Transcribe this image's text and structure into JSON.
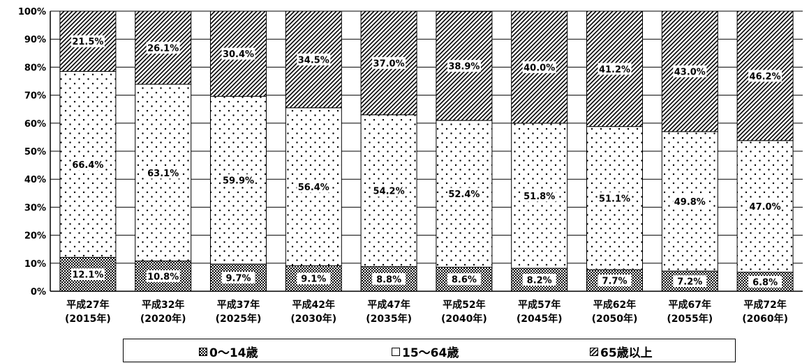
{
  "chart_data": {
    "type": "bar",
    "stacked": true,
    "categories": [
      "平成27年\n(2015年)",
      "平成32年\n(2020年)",
      "平成37年\n(2025年)",
      "平成42年\n(2030年)",
      "平成47年\n(2035年)",
      "平成52年\n(2040年)",
      "平成57年\n(2045年)",
      "平成62年\n(2050年)",
      "平成67年\n(2055年)",
      "平成72年\n(2060年)"
    ],
    "series": [
      {
        "name": "0～14歳",
        "values": [
          12.1,
          10.8,
          9.7,
          9.1,
          8.8,
          8.6,
          8.2,
          7.7,
          7.2,
          6.8
        ],
        "labels": [
          "12.1%",
          "10.8%",
          "9.7%",
          "9.1%",
          "8.8%",
          "8.6%",
          "8.2%",
          "7.7%",
          "7.2%",
          "6.8%"
        ],
        "pattern": "checker"
      },
      {
        "name": "15～64歳",
        "values": [
          66.4,
          63.1,
          59.9,
          56.4,
          54.2,
          52.4,
          51.8,
          51.1,
          49.8,
          47.0
        ],
        "labels": [
          "66.4%",
          "63.1%",
          "59.9%",
          "56.4%",
          "54.2%",
          "52.4%",
          "51.8%",
          "51.1%",
          "49.8%",
          "47.0%"
        ],
        "pattern": "dots"
      },
      {
        "name": "65歳以上",
        "values": [
          21.5,
          26.1,
          30.4,
          34.5,
          37.0,
          38.9,
          40.0,
          41.2,
          43.0,
          46.2
        ],
        "labels": [
          "21.5%",
          "26.1%",
          "30.4%",
          "34.5%",
          "37.0%",
          "38.9%",
          "40.0%",
          "41.2%",
          "43.0%",
          "46.2%"
        ],
        "pattern": "hatch"
      }
    ],
    "yticks": [
      "0%",
      "10%",
      "20%",
      "30%",
      "40%",
      "50%",
      "60%",
      "70%",
      "80%",
      "90%",
      "100%"
    ],
    "ylim": [
      0,
      100
    ],
    "grid": true,
    "legend_position": "bottom",
    "xlabel": "",
    "ylabel": ""
  },
  "legend": {
    "items": [
      {
        "label": "0～14歳",
        "pattern": "checker"
      },
      {
        "label": "15～64歳",
        "pattern": "dots"
      },
      {
        "label": "65歳以上",
        "pattern": "hatch"
      }
    ]
  }
}
